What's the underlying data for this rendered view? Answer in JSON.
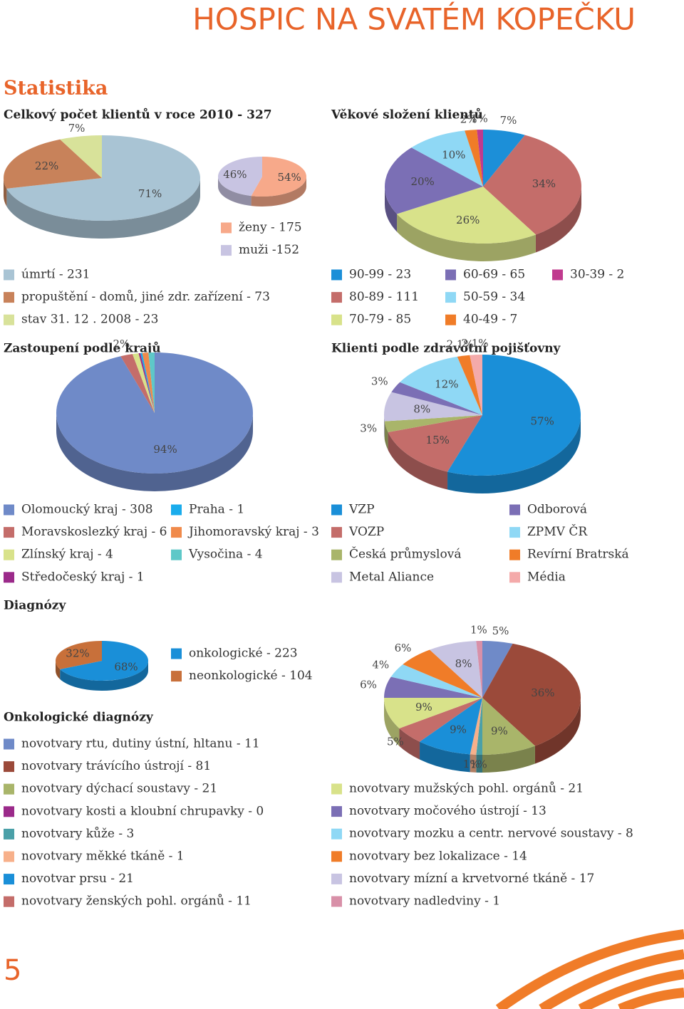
{
  "header": {
    "title": "HOSPIC NA SVATÉM KOPEČKU",
    "section": "Statistika",
    "page": 5
  },
  "chart_data": [
    {
      "type": "pie",
      "title": "Celkový počet klientů v roce 2010 - 327",
      "categories": [
        "úmrtí - 231",
        "propuštění - domů, jiné zdr. zařízení - 73",
        "stav 31. 12 . 2008 - 23"
      ],
      "values": [
        71,
        22,
        7
      ],
      "value_labels": [
        "71%",
        "22%",
        "7%"
      ],
      "colors": [
        "#a9c4d4",
        "#c8825a",
        "#d8e29a"
      ]
    },
    {
      "type": "pie",
      "categories": [
        "ženy - 175",
        "muži -152"
      ],
      "values": [
        54,
        46
      ],
      "value_labels": [
        "54%",
        "46%"
      ],
      "colors": [
        "#f7a98a",
        "#c8c4e2"
      ]
    },
    {
      "type": "pie",
      "title": "Věkové složení klientů",
      "categories": [
        "90-99 - 23",
        "80-89 - 111",
        "70-79 - 85",
        "60-69 - 65",
        "50-59 - 34",
        "40-49 - 7",
        "30-39 - 2"
      ],
      "values": [
        7,
        34,
        26,
        20,
        10,
        2,
        1
      ],
      "value_labels": [
        "7%",
        "34%",
        "26%",
        "20%",
        "10%",
        "2%",
        "1%"
      ],
      "colors": [
        "#1c8fd8",
        "#c46d6a",
        "#d8e28a",
        "#7b6fb5",
        "#8fd8f5",
        "#f07c28",
        "#c03a8e"
      ]
    },
    {
      "type": "pie",
      "title": "Zastoupení podle krajů",
      "categories": [
        "Olomoucký kraj - 308",
        "Moravskoslezký kraj - 6",
        "Zlínský kraj - 4",
        "Středočeský kraj - 1",
        "Praha - 1",
        "Jihomoravský kraj - 3",
        "Vysočina - 4"
      ],
      "values": [
        94,
        2,
        1,
        0.3,
        0.3,
        1,
        1
      ],
      "value_labels": [
        "94%",
        "2%",
        null,
        null,
        null,
        null,
        null
      ],
      "colors": [
        "#6f8ac8",
        "#c46d6a",
        "#d8e28a",
        "#9b2a8a",
        "#1aacec",
        "#f08a4b",
        "#5ec8c8"
      ]
    },
    {
      "type": "pie",
      "title": "Klienti podle zdravotní pojišťovny",
      "categories": [
        "VZP",
        "VOZP",
        "Česká průmyslová",
        "Metal Aliance",
        "Odborová",
        "ZPMV ČR",
        "Revírní Bratrská",
        "Média"
      ],
      "values": [
        57,
        15,
        3,
        8,
        3,
        12,
        2.1,
        2.1
      ],
      "value_labels": [
        "57%",
        "15%",
        "3%",
        "8%",
        "3%",
        "12%",
        "2,1%",
        "2,1%"
      ],
      "colors": [
        "#1a8fd8",
        "#c46d6a",
        "#a9b56a",
        "#c8c4e2",
        "#7b6fb5",
        "#8fd8f5",
        "#f07c28",
        "#f4aaaa"
      ]
    },
    {
      "type": "pie",
      "title": "Diagnózy",
      "categories": [
        "onkologické - 223",
        "neonkologické - 104"
      ],
      "values": [
        68,
        32
      ],
      "value_labels": [
        "68%",
        "32%"
      ],
      "colors": [
        "#1a8fd8",
        "#c8703a"
      ]
    },
    {
      "type": "pie",
      "title": "Onkologické diagnózy",
      "categories": [
        "novotvary rtu, dutiny ústní, hltanu - 11",
        "novotvary trávícího ústrojí - 81",
        "novotvary dýchací soustavy - 21",
        "novotvary kosti a kloubní chrupavky - 0",
        "novotvary kůže - 3",
        "novotvary měkké tkáně - 1",
        "novotvar prsu - 21",
        "novotvary ženských pohl. orgánů - 11",
        "novotvary mužských pohl. orgánů - 21",
        "novotvary močového ústrojí - 13",
        "novotvary mozku a centr. nervové soustavy - 8",
        "novotvary bez lokalizace - 14",
        "novotvary mízní a krvetvorné tkáně - 17",
        "novotvary nadledviny - 1"
      ],
      "values": [
        5,
        36,
        9,
        0,
        1,
        1,
        9,
        5,
        9,
        6,
        4,
        6,
        8,
        1
      ],
      "value_labels": [
        "5%",
        "36%",
        "9%",
        null,
        "1%",
        "1%",
        "9%",
        "5%",
        "9%",
        "6%",
        "4%",
        "6%",
        "8%",
        "1%"
      ],
      "colors": [
        "#6f8ac8",
        "#9b4a3a",
        "#a9b56a",
        "#9b2a8a",
        "#4aa0a8",
        "#f7b08a",
        "#1a8fd8",
        "#c46d6a",
        "#d8e28a",
        "#7b6fb5",
        "#8fd8f5",
        "#f07c28",
        "#c8c4e2",
        "#d890a8"
      ]
    }
  ]
}
